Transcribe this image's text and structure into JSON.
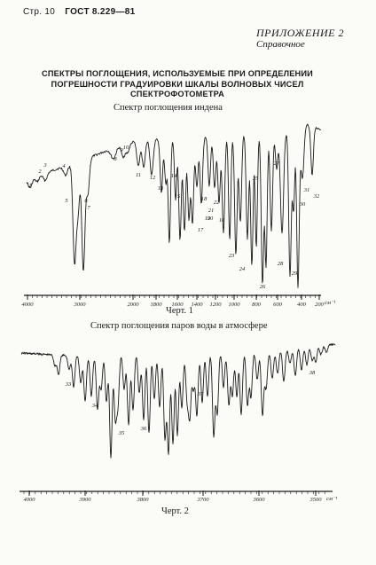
{
  "header": {
    "page_label": "Стр. 10",
    "standard": "ГОСТ 8.229—81"
  },
  "appendix": {
    "title": "ПРИЛОЖЕНИЕ 2",
    "subtitle": "Справочное"
  },
  "heading": {
    "line1": "СПЕКТРЫ ПОГЛОЩЕНИЯ, ИСПОЛЬЗУЕМЫЕ ПРИ ОПРЕДЕЛЕНИИ",
    "line2": "ПОГРЕШНОСТИ ГРАДУИРОВКИ ШКАЛЫ ВОЛНОВЫХ ЧИСЕЛ",
    "line3": "СПЕКТРОФОТОМЕТРА"
  },
  "chart_data": [
    {
      "type": "line",
      "title": "Спектр поглощения индена",
      "caption": "Черт. 1",
      "x_ticks": [
        "4000",
        "3000",
        "2000",
        "1800",
        "1600",
        "1400",
        "1200",
        "1000",
        "800",
        "600",
        "400",
        "200"
      ],
      "x_unit": "см⁻¹",
      "band_labels": [
        "1",
        "2",
        "3",
        "4",
        "5",
        "6",
        "7",
        "8",
        "9",
        "10",
        "11",
        "12",
        "13",
        "14",
        "15",
        "16",
        "17",
        "18",
        "19",
        "20",
        "21",
        "22",
        "23",
        "24",
        "25",
        "26",
        "27",
        "28",
        "29",
        "30",
        "31",
        "32"
      ],
      "band_positions_cm1": [
        3920,
        3800,
        3720,
        3520,
        3060,
        2900,
        2740,
        2200,
        1960,
        1890,
        1780,
        1700,
        1640,
        1610,
        1560,
        1460,
        1440,
        1410,
        1360,
        1320,
        1250,
        1190,
        1060,
        1010,
        960,
        830,
        740,
        560,
        400,
        320,
        290,
        190
      ]
    },
    {
      "type": "line",
      "title": "Спектр поглощения паров воды в атмосфере",
      "caption": "Черт. 2",
      "x_ticks": [
        "4000",
        "3900",
        "3800",
        "3700",
        "3600",
        "3500"
      ],
      "x_unit": "см⁻¹",
      "band_labels": [
        "33",
        "34",
        "35",
        "36",
        "37",
        "38"
      ],
      "band_positions_cm1": [
        3945,
        3908,
        3882,
        3851,
        3744,
        3534
      ]
    }
  ]
}
